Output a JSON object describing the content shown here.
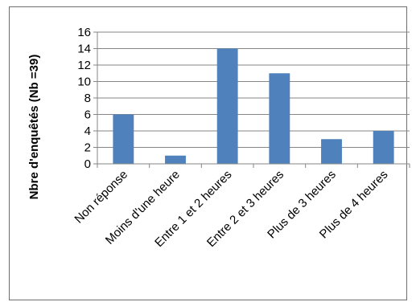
{
  "chart_data": {
    "type": "bar",
    "title": "",
    "xlabel": "",
    "ylabel": "Nbre d'enquêtés (Nb =39)",
    "categories": [
      "Non réponse",
      "Moins d'une heure",
      "Entre 1 et 2 heures",
      "Entre 2 et 3 heures",
      "Plus de 3 heures",
      "Plus de 4 heures"
    ],
    "values": [
      6,
      1,
      14,
      11,
      3,
      4
    ],
    "ylim": [
      0,
      16
    ],
    "yticks": [
      "0",
      "2",
      "4",
      "6",
      "8",
      "10",
      "12",
      "14",
      "16"
    ],
    "grid": true,
    "legend": "none",
    "bar_color": "#4F81BD",
    "grid_color": "#868686",
    "frame_color": "#6e6e6e"
  }
}
